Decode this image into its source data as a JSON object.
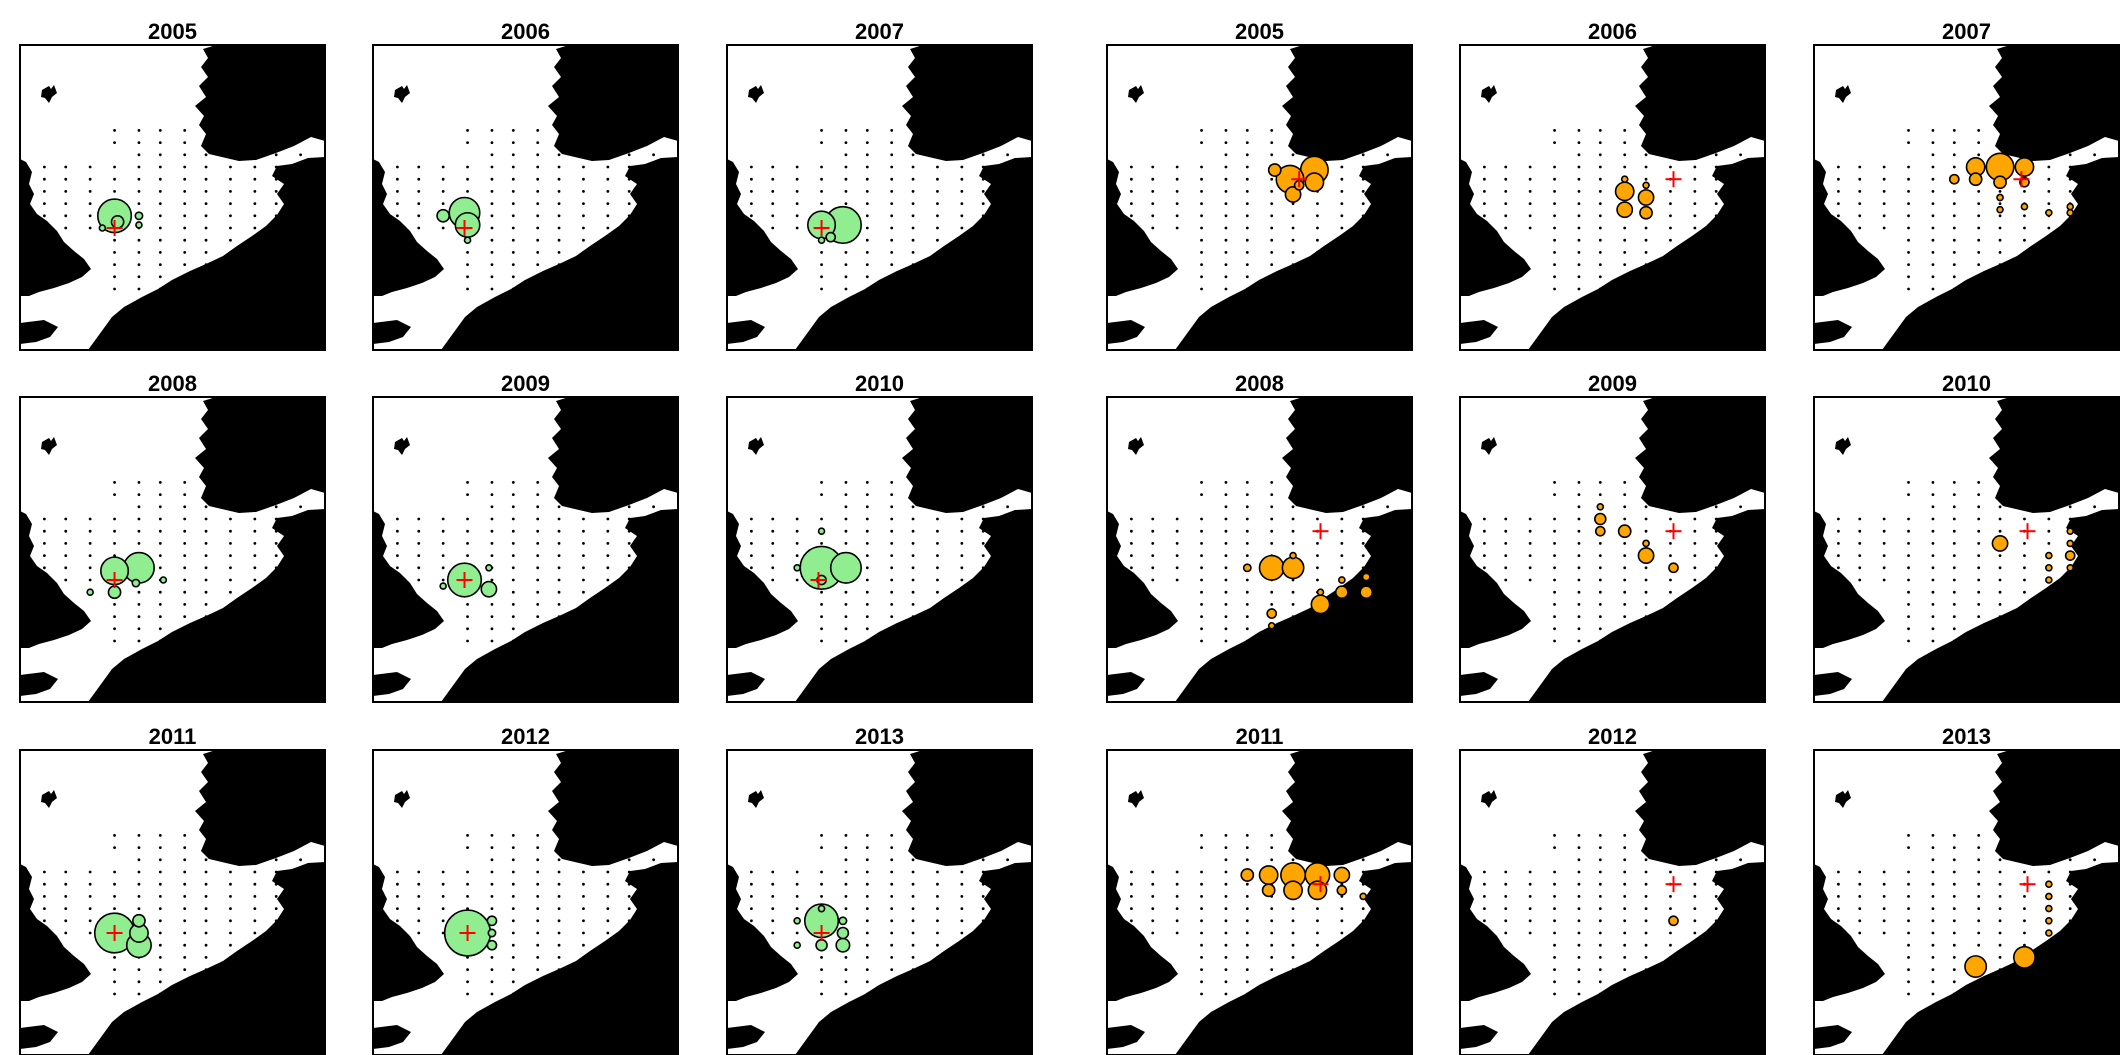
{
  "colors": {
    "green_series": "#90EE90",
    "orange_series": "#FFA500",
    "centroid": "#FF0000",
    "land": "#000000",
    "water": "#FFFFFF"
  },
  "panels": [
    {
      "group": "green",
      "title": "2005",
      "centroid": [
        0.31,
        0.6
      ],
      "bubbles": [
        [
          0.31,
          0.56,
          0.055
        ],
        [
          0.32,
          0.58,
          0.02
        ],
        [
          0.39,
          0.56,
          0.012
        ],
        [
          0.39,
          0.59,
          0.009
        ],
        [
          0.27,
          0.6,
          0.006
        ]
      ]
    },
    {
      "group": "green",
      "title": "2006",
      "centroid": [
        0.3,
        0.6
      ],
      "bubbles": [
        [
          0.3,
          0.55,
          0.05
        ],
        [
          0.31,
          0.59,
          0.04
        ],
        [
          0.23,
          0.56,
          0.02
        ],
        [
          0.31,
          0.64,
          0.01
        ]
      ]
    },
    {
      "group": "green",
      "title": "2007",
      "centroid": [
        0.31,
        0.6
      ],
      "bubbles": [
        [
          0.38,
          0.59,
          0.06
        ],
        [
          0.31,
          0.59,
          0.045
        ],
        [
          0.34,
          0.63,
          0.015
        ],
        [
          0.31,
          0.64,
          0.01
        ]
      ]
    },
    {
      "group": "orange",
      "title": "2005",
      "centroid": [
        0.63,
        0.44
      ],
      "bubbles": [
        [
          0.68,
          0.41,
          0.045
        ],
        [
          0.6,
          0.44,
          0.045
        ],
        [
          0.68,
          0.45,
          0.03
        ],
        [
          0.61,
          0.49,
          0.025
        ],
        [
          0.55,
          0.41,
          0.02
        ],
        [
          0.63,
          0.46,
          0.015
        ]
      ]
    },
    {
      "group": "orange",
      "title": "2006",
      "centroid": [
        0.7,
        0.44
      ],
      "bubbles": [
        [
          0.54,
          0.48,
          0.03
        ],
        [
          0.54,
          0.54,
          0.025
        ],
        [
          0.61,
          0.5,
          0.025
        ],
        [
          0.61,
          0.55,
          0.02
        ],
        [
          0.54,
          0.44,
          0.01
        ],
        [
          0.61,
          0.46,
          0.008
        ]
      ]
    },
    {
      "group": "orange",
      "title": "2007",
      "centroid": [
        0.68,
        0.44
      ],
      "bubbles": [
        [
          0.61,
          0.4,
          0.045
        ],
        [
          0.53,
          0.4,
          0.03
        ],
        [
          0.69,
          0.4,
          0.03
        ],
        [
          0.61,
          0.45,
          0.02
        ],
        [
          0.53,
          0.44,
          0.02
        ],
        [
          0.46,
          0.44,
          0.015
        ],
        [
          0.69,
          0.45,
          0.015
        ],
        [
          0.61,
          0.5,
          0.01
        ],
        [
          0.69,
          0.53,
          0.01
        ],
        [
          0.84,
          0.55,
          0.01
        ],
        [
          0.84,
          0.53,
          0.008
        ],
        [
          0.61,
          0.54,
          0.008
        ],
        [
          0.77,
          0.55,
          0.008
        ]
      ]
    },
    {
      "group": "green",
      "title": "2008",
      "centroid": [
        0.31,
        0.6
      ],
      "bubbles": [
        [
          0.39,
          0.56,
          0.05
        ],
        [
          0.31,
          0.57,
          0.045
        ],
        [
          0.31,
          0.64,
          0.02
        ],
        [
          0.38,
          0.61,
          0.012
        ],
        [
          0.23,
          0.64,
          0.006
        ],
        [
          0.47,
          0.6,
          0.006
        ]
      ]
    },
    {
      "group": "green",
      "title": "2009",
      "centroid": [
        0.3,
        0.6
      ],
      "bubbles": [
        [
          0.3,
          0.6,
          0.055
        ],
        [
          0.38,
          0.63,
          0.025
        ],
        [
          0.38,
          0.56,
          0.008
        ],
        [
          0.23,
          0.62,
          0.006
        ]
      ]
    },
    {
      "group": "green",
      "title": "2010",
      "centroid": [
        0.3,
        0.6
      ],
      "bubbles": [
        [
          0.31,
          0.56,
          0.07
        ],
        [
          0.39,
          0.56,
          0.05
        ],
        [
          0.31,
          0.6,
          0.015
        ],
        [
          0.31,
          0.44,
          0.006
        ],
        [
          0.23,
          0.56,
          0.006
        ]
      ]
    },
    {
      "group": "orange",
      "title": "2008",
      "centroid": [
        0.7,
        0.44
      ],
      "bubbles": [
        [
          0.54,
          0.56,
          0.04
        ],
        [
          0.61,
          0.56,
          0.035
        ],
        [
          0.7,
          0.68,
          0.03
        ],
        [
          0.77,
          0.64,
          0.02
        ],
        [
          0.85,
          0.64,
          0.02
        ],
        [
          0.54,
          0.71,
          0.015
        ],
        [
          0.46,
          0.56,
          0.012
        ],
        [
          0.85,
          0.59,
          0.012
        ],
        [
          0.77,
          0.6,
          0.01
        ],
        [
          0.61,
          0.52,
          0.008
        ],
        [
          0.7,
          0.64,
          0.008
        ],
        [
          0.54,
          0.75,
          0.008
        ]
      ]
    },
    {
      "group": "orange",
      "title": "2009",
      "centroid": [
        0.7,
        0.44
      ],
      "bubbles": [
        [
          0.46,
          0.4,
          0.018
        ],
        [
          0.54,
          0.44,
          0.02
        ],
        [
          0.61,
          0.52,
          0.025
        ],
        [
          0.7,
          0.56,
          0.015
        ],
        [
          0.46,
          0.44,
          0.015
        ],
        [
          0.61,
          0.48,
          0.01
        ],
        [
          0.46,
          0.36,
          0.008
        ]
      ]
    },
    {
      "group": "orange",
      "title": "2010",
      "centroid": [
        0.7,
        0.44
      ],
      "bubbles": [
        [
          0.61,
          0.48,
          0.025
        ],
        [
          0.84,
          0.52,
          0.015
        ],
        [
          0.77,
          0.56,
          0.01
        ],
        [
          0.84,
          0.48,
          0.008
        ],
        [
          0.84,
          0.56,
          0.008
        ],
        [
          0.77,
          0.52,
          0.006
        ],
        [
          0.77,
          0.6,
          0.006
        ],
        [
          0.84,
          0.44,
          0.006
        ]
      ]
    },
    {
      "group": "green",
      "title": "2011",
      "centroid": [
        0.31,
        0.6
      ],
      "bubbles": [
        [
          0.31,
          0.6,
          0.065
        ],
        [
          0.39,
          0.64,
          0.04
        ],
        [
          0.39,
          0.6,
          0.03
        ],
        [
          0.39,
          0.56,
          0.02
        ]
      ]
    },
    {
      "group": "green",
      "title": "2012",
      "centroid": [
        0.31,
        0.6
      ],
      "bubbles": [
        [
          0.31,
          0.6,
          0.075
        ],
        [
          0.39,
          0.56,
          0.015
        ],
        [
          0.39,
          0.64,
          0.015
        ],
        [
          0.39,
          0.6,
          0.012
        ]
      ]
    },
    {
      "group": "green",
      "title": "2013",
      "centroid": [
        0.31,
        0.6
      ],
      "bubbles": [
        [
          0.31,
          0.56,
          0.055
        ],
        [
          0.38,
          0.6,
          0.018
        ],
        [
          0.38,
          0.64,
          0.022
        ],
        [
          0.31,
          0.64,
          0.018
        ],
        [
          0.38,
          0.56,
          0.012
        ],
        [
          0.23,
          0.64,
          0.01
        ],
        [
          0.31,
          0.52,
          0.01
        ],
        [
          0.23,
          0.56,
          0.006
        ]
      ]
    },
    {
      "group": "orange",
      "title": "2011",
      "centroid": [
        0.7,
        0.44
      ],
      "bubbles": [
        [
          0.61,
          0.41,
          0.04
        ],
        [
          0.69,
          0.41,
          0.04
        ],
        [
          0.53,
          0.41,
          0.03
        ],
        [
          0.61,
          0.46,
          0.03
        ],
        [
          0.69,
          0.46,
          0.03
        ],
        [
          0.77,
          0.41,
          0.025
        ],
        [
          0.53,
          0.46,
          0.02
        ],
        [
          0.46,
          0.41,
          0.02
        ],
        [
          0.77,
          0.46,
          0.015
        ],
        [
          0.84,
          0.48,
          0.01
        ]
      ]
    },
    {
      "group": "orange",
      "title": "2012",
      "centroid": [
        0.7,
        0.44
      ],
      "bubbles": [
        [
          0.7,
          0.56,
          0.015
        ]
      ]
    },
    {
      "group": "orange",
      "title": "2013",
      "centroid": [
        0.7,
        0.44
      ],
      "bubbles": [
        [
          0.69,
          0.68,
          0.035
        ],
        [
          0.53,
          0.71,
          0.035
        ],
        [
          0.77,
          0.44,
          0.006
        ],
        [
          0.77,
          0.48,
          0.008
        ],
        [
          0.77,
          0.52,
          0.008
        ],
        [
          0.77,
          0.56,
          0.006
        ],
        [
          0.77,
          0.6,
          0.006
        ]
      ]
    }
  ]
}
